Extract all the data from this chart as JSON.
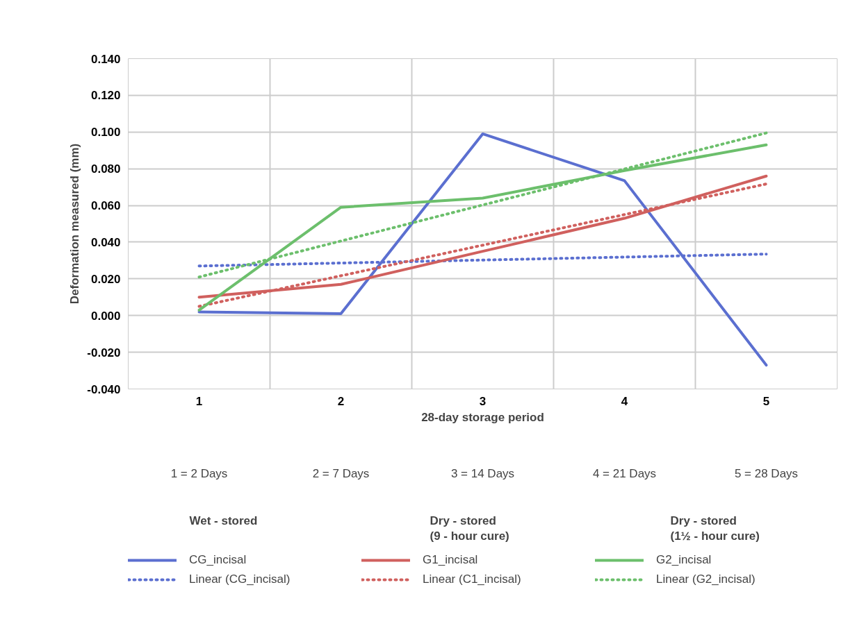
{
  "chart_data": {
    "type": "line",
    "xlabel": "28-day storage period",
    "ylabel": "Deformation measured (mm)",
    "categories": [
      "1",
      "2",
      "3",
      "4",
      "5"
    ],
    "ylim": [
      -0.04,
      0.14
    ],
    "yticks": [
      {
        "value": -0.04,
        "label": "-0.040"
      },
      {
        "value": -0.02,
        "label": "-0.020"
      },
      {
        "value": 0,
        "label": "0.000"
      },
      {
        "value": 0.02,
        "label": "0.020"
      },
      {
        "value": 0.04,
        "label": "0.040"
      },
      {
        "value": 0.06,
        "label": "0.060"
      },
      {
        "value": 0.08,
        "label": "0.080"
      },
      {
        "value": 0.1,
        "label": "0.100"
      },
      {
        "value": 0.12,
        "label": "0.120"
      },
      {
        "value": 0.14,
        "label": "0.140"
      }
    ],
    "grid": true,
    "legend": "bottom",
    "marker": "none",
    "series": [
      {
        "name": "CG_incisal",
        "color": "#5b6fd0",
        "line_style": "solid",
        "values": [
          0.002,
          0.001,
          0.099,
          0.0735,
          -0.027
        ]
      },
      {
        "name": "Linear (CG_incisal)",
        "color": "#5b6fd0",
        "line_style": "dotted",
        "x": [
          "1",
          "5"
        ],
        "values": [
          0.027,
          0.0335
        ]
      },
      {
        "name": "G1_incisal",
        "color": "#d0605e",
        "line_style": "solid",
        "values": [
          0.01,
          0.017,
          0.035,
          0.053,
          0.076
        ]
      },
      {
        "name": "Linear (C1_incisal)",
        "color": "#d0605e",
        "line_style": "dotted",
        "x": [
          "1",
          "5"
        ],
        "values": [
          0.005,
          0.0717
        ]
      },
      {
        "name": "G2_incisal",
        "color": "#6cbf6c",
        "line_style": "solid",
        "values": [
          0.003,
          0.059,
          0.064,
          0.079,
          0.093
        ]
      },
      {
        "name": "Linear (G2_incisal)",
        "color": "#6cbf6c",
        "line_style": "dotted",
        "x": [
          "1",
          "5"
        ],
        "values": [
          0.021,
          0.0995
        ]
      }
    ],
    "annotations": [
      "1 = 2 Days",
      "2 = 7 Days",
      "3 = 14 Days",
      "4 = 21 Days",
      "5 = 28 Days",
      "Wet - stored",
      "Dry - stored\n(9 - hour cure)",
      "Dry - stored\n(1½ - hour cure)"
    ]
  }
}
